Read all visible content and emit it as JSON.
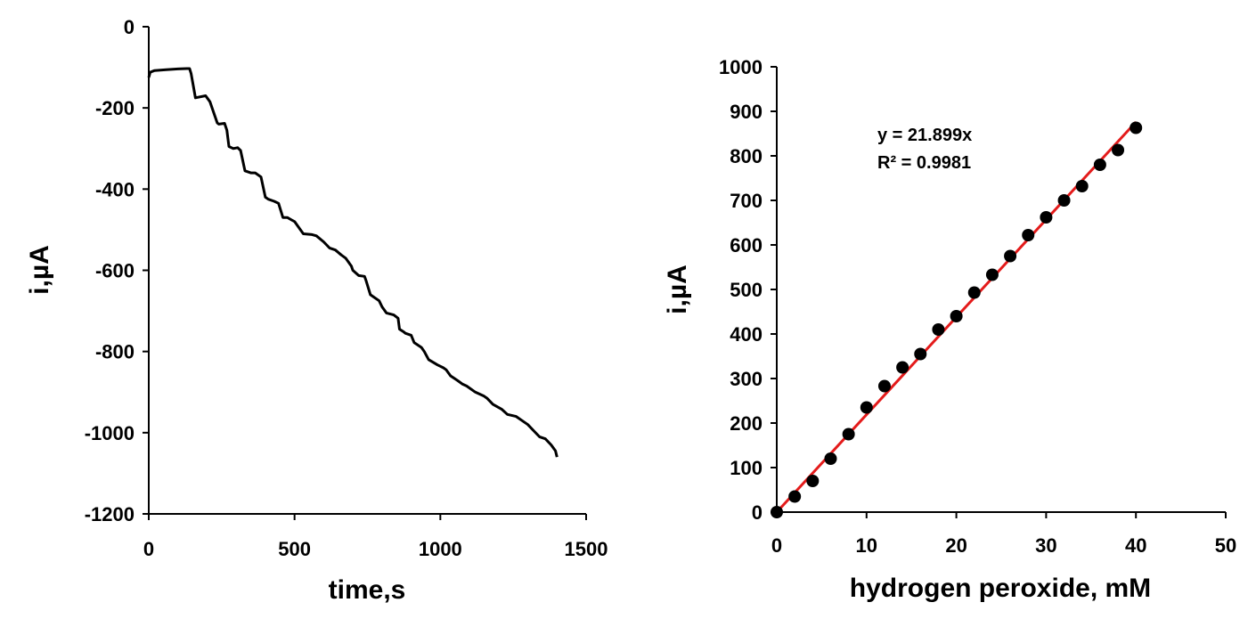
{
  "chart_data": [
    {
      "type": "line",
      "xlabel": "time,s",
      "ylabel": "i,µA",
      "xlim": [
        0,
        1500
      ],
      "ylim": [
        -1200,
        0
      ],
      "xticks": [
        0,
        500,
        1000,
        1500
      ],
      "yticks": [
        0,
        -200,
        -400,
        -600,
        -800,
        -1000,
        -1200
      ],
      "grid": false,
      "legend": "none",
      "line_color": "#000000",
      "series": [
        {
          "x": [
            0,
            5,
            20,
            60,
            100,
            130,
            140,
            145,
            160,
            195,
            200,
            210,
            235,
            240,
            260,
            268,
            275,
            290,
            305,
            315,
            330,
            350,
            365,
            385,
            400,
            410,
            430,
            445,
            460,
            475,
            490,
            500,
            530,
            560,
            575,
            600,
            620,
            640,
            660,
            675,
            695,
            700,
            720,
            740,
            745,
            760,
            770,
            790,
            800,
            815,
            840,
            855,
            860,
            875,
            880,
            900,
            910,
            935,
            945,
            960,
            990,
            1010,
            1020,
            1035,
            1060,
            1075,
            1090,
            1120,
            1150,
            1160,
            1180,
            1210,
            1230,
            1260,
            1280,
            1300,
            1320,
            1340,
            1360,
            1380,
            1395,
            1400
          ],
          "y": [
            -125,
            -112,
            -108,
            -106,
            -104,
            -103,
            -103,
            -115,
            -175,
            -170,
            -175,
            -185,
            -237,
            -240,
            -238,
            -255,
            -295,
            -300,
            -298,
            -305,
            -355,
            -360,
            -360,
            -370,
            -420,
            -425,
            -430,
            -435,
            -470,
            -470,
            -476,
            -480,
            -510,
            -512,
            -515,
            -530,
            -545,
            -550,
            -562,
            -570,
            -590,
            -600,
            -613,
            -615,
            -625,
            -660,
            -665,
            -675,
            -690,
            -705,
            -710,
            -718,
            -745,
            -752,
            -755,
            -760,
            -778,
            -790,
            -800,
            -820,
            -833,
            -840,
            -845,
            -860,
            -872,
            -880,
            -885,
            -900,
            -910,
            -915,
            -930,
            -942,
            -955,
            -960,
            -970,
            -980,
            -995,
            -1010,
            -1015,
            -1030,
            -1045,
            -1060
          ]
        }
      ]
    },
    {
      "type": "scatter",
      "xlabel": "hydrogen peroxide, mM",
      "ylabel": "i,µA",
      "xlim": [
        0,
        50
      ],
      "ylim": [
        0,
        1000
      ],
      "xticks": [
        0,
        10,
        20,
        30,
        40,
        50
      ],
      "yticks": [
        0,
        100,
        200,
        300,
        400,
        500,
        600,
        700,
        800,
        900,
        1000
      ],
      "grid": false,
      "legend": "none",
      "point_color": "#000000",
      "trendline_color": "#e41b1b",
      "series": [
        {
          "x": [
            0,
            2,
            4,
            6,
            8,
            10,
            12,
            14,
            16,
            18,
            20,
            22,
            24,
            26,
            28,
            30,
            32,
            34,
            36,
            38,
            40
          ],
          "y": [
            0,
            35,
            70,
            120,
            175,
            235,
            283,
            325,
            355,
            410,
            440,
            493,
            533,
            575,
            622,
            662,
            700,
            732,
            780,
            813,
            863
          ]
        }
      ],
      "trendline": {
        "slope": 21.899,
        "x_range": [
          0,
          40
        ]
      },
      "annotations": [
        "y = 21.899x",
        "R² = 0.9981"
      ]
    }
  ]
}
